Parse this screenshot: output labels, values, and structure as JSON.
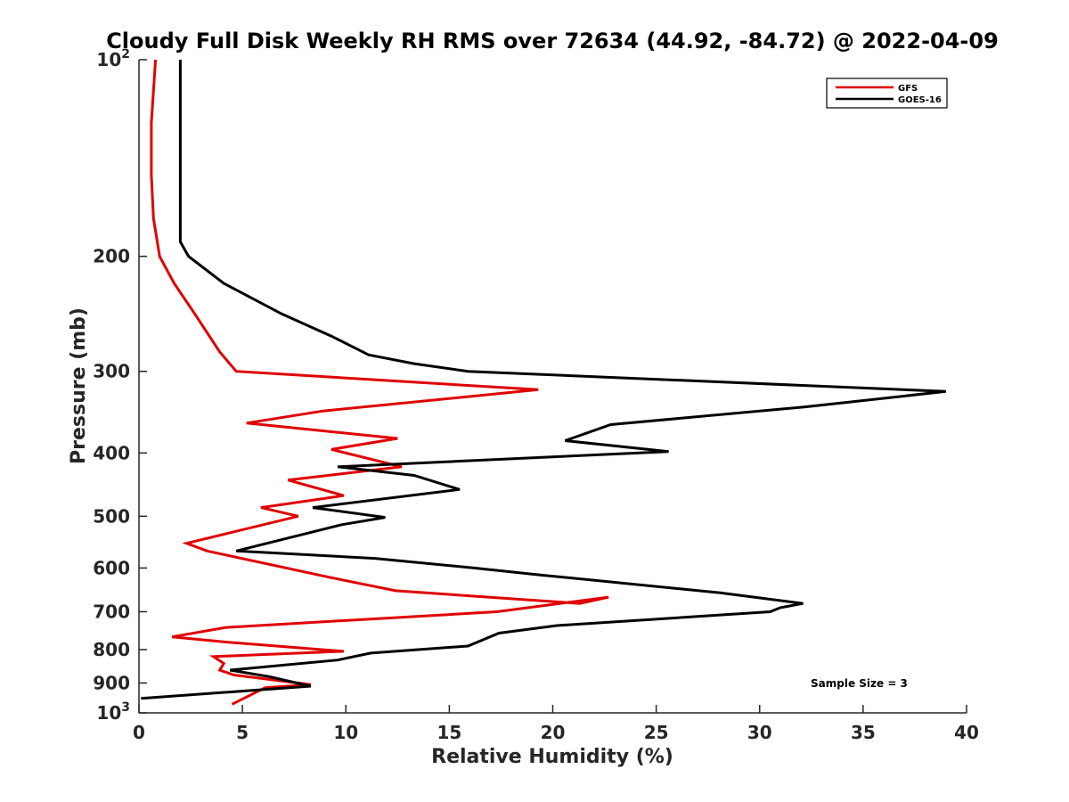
{
  "chart_data": {
    "type": "line",
    "title": "Cloudy Full Disk Weekly RH RMS over 72634 (44.92, -84.72) @ 2022-04-09",
    "xlabel": "Relative Humidity (%)",
    "ylabel": "Pressure (mb)",
    "xlim": [
      0,
      40
    ],
    "ylim": [
      100,
      1000
    ],
    "yscale": "log",
    "y_reversed": true,
    "x_ticks": [
      0,
      5,
      10,
      15,
      20,
      25,
      30,
      35,
      40
    ],
    "x_tick_labels": [
      "0",
      "5",
      "10",
      "15",
      "20",
      "25",
      "30",
      "35",
      "40"
    ],
    "y_ticks": [
      100,
      200,
      300,
      400,
      500,
      600,
      700,
      800,
      900,
      1000
    ],
    "y_tick_labels": [
      {
        "base": "10",
        "exp": "2"
      },
      {
        "base": "200",
        "exp": ""
      },
      {
        "base": "300",
        "exp": ""
      },
      {
        "base": "400",
        "exp": ""
      },
      {
        "base": "500",
        "exp": ""
      },
      {
        "base": "600",
        "exp": ""
      },
      {
        "base": "700",
        "exp": ""
      },
      {
        "base": "800",
        "exp": ""
      },
      {
        "base": "900",
        "exp": ""
      },
      {
        "base": "10",
        "exp": "3"
      }
    ],
    "grid": false,
    "legend_position": "top-right",
    "annotation": "Sample Size = 3",
    "series": [
      {
        "name": "GFS",
        "color": "#e00000",
        "points": [
          [
            0.8,
            100
          ],
          [
            0.6,
            125
          ],
          [
            0.6,
            150
          ],
          [
            0.7,
            175
          ],
          [
            1.0,
            200
          ],
          [
            1.7,
            220
          ],
          [
            2.7,
            245
          ],
          [
            3.9,
            280
          ],
          [
            4.7,
            300
          ],
          [
            19.3,
            320
          ],
          [
            8.9,
            345
          ],
          [
            5.2,
            360
          ],
          [
            12.5,
            380
          ],
          [
            9.3,
            395
          ],
          [
            12.7,
            420
          ],
          [
            7.2,
            440
          ],
          [
            9.9,
            465
          ],
          [
            5.9,
            485
          ],
          [
            7.7,
            500
          ],
          [
            2.3,
            550
          ],
          [
            3.3,
            565
          ],
          [
            9.2,
            620
          ],
          [
            12.4,
            650
          ],
          [
            21.3,
            680
          ],
          [
            22.7,
            665
          ],
          [
            17.3,
            700
          ],
          [
            4.2,
            740
          ],
          [
            1.6,
            765
          ],
          [
            4.4,
            780
          ],
          [
            9.9,
            805
          ],
          [
            3.6,
            820
          ],
          [
            4.1,
            840
          ],
          [
            3.9,
            860
          ],
          [
            4.6,
            875
          ],
          [
            8.3,
            905
          ],
          [
            6.1,
            915
          ],
          [
            4.5,
            970
          ]
        ]
      },
      {
        "name": "GOES-16",
        "color": "#000000",
        "points": [
          [
            2.0,
            100
          ],
          [
            2.0,
            125
          ],
          [
            2.0,
            150
          ],
          [
            2.0,
            175
          ],
          [
            2.0,
            190
          ],
          [
            2.4,
            200
          ],
          [
            4.1,
            220
          ],
          [
            6.9,
            245
          ],
          [
            9.3,
            265
          ],
          [
            11.1,
            283
          ],
          [
            13.3,
            292
          ],
          [
            15.9,
            300
          ],
          [
            39.0,
            322
          ],
          [
            32.2,
            340
          ],
          [
            22.8,
            362
          ],
          [
            20.6,
            383
          ],
          [
            25.6,
            398
          ],
          [
            9.6,
            420
          ],
          [
            13.3,
            433
          ],
          [
            15.5,
            455
          ],
          [
            8.4,
            485
          ],
          [
            11.9,
            502
          ],
          [
            9.8,
            515
          ],
          [
            4.7,
            565
          ],
          [
            11.4,
            580
          ],
          [
            16.2,
            600
          ],
          [
            19.4,
            615
          ],
          [
            28.1,
            655
          ],
          [
            32.1,
            680
          ],
          [
            31.0,
            690
          ],
          [
            30.5,
            700
          ],
          [
            20.2,
            735
          ],
          [
            17.4,
            755
          ],
          [
            15.9,
            790
          ],
          [
            11.2,
            810
          ],
          [
            9.6,
            830
          ],
          [
            4.4,
            860
          ],
          [
            6.3,
            880
          ],
          [
            8.3,
            910
          ],
          [
            0.1,
            950
          ]
        ]
      }
    ]
  }
}
